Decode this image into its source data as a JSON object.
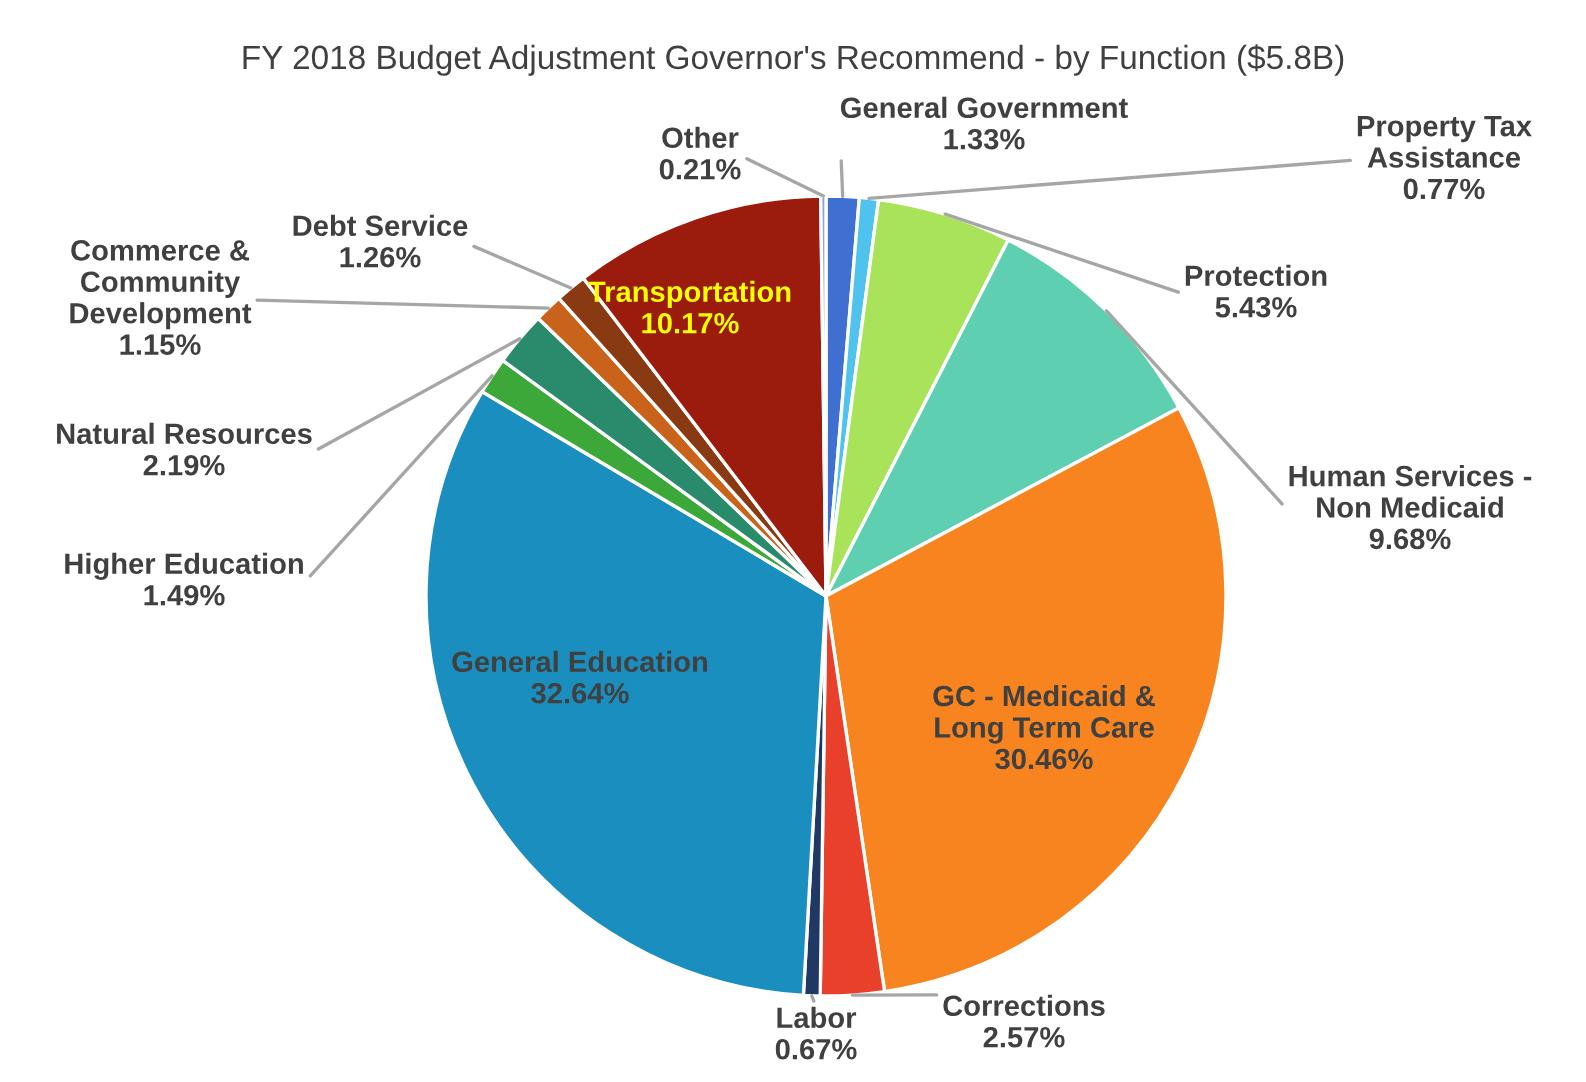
{
  "chart_data": {
    "type": "pie",
    "title": "FY 2018 Budget Adjustment Governor's Recommend - by Function ($5.8B)",
    "categories": [
      "General Government",
      "Property Tax\nAssistance",
      "Protection",
      "Human Services -\nNon Medicaid",
      "GC - Medicaid &\nLong Term Care",
      "Corrections",
      "Labor",
      "General Education",
      "Higher Education",
      "Natural Resources",
      "Commerce &\nCommunity\nDevelopment",
      "Debt Service",
      "Transportation",
      "Other"
    ],
    "values": [
      1.33,
      0.77,
      5.43,
      9.68,
      30.46,
      2.57,
      0.67,
      32.64,
      1.49,
      2.19,
      1.15,
      1.26,
      10.17,
      0.21
    ],
    "colors": [
      "#3f6fd0",
      "#4fc3ee",
      "#a8e35a",
      "#5ecfb1",
      "#f7841f",
      "#e8402a",
      "#1f3864",
      "#1b8ec0",
      "#3ca83a",
      "#2a8a6c",
      "#c9621a",
      "#8a3a12",
      "#9b1b0c",
      "#8f9fe0"
    ],
    "value_labels": [
      "1.33%",
      "0.77%",
      "5.43%",
      "9.68%",
      "30.46%",
      "2.57%",
      "0.67%",
      "32.64%",
      "1.49%",
      "2.19%",
      "1.15%",
      "1.26%",
      "10.17%",
      "0.21%"
    ],
    "legend": false
  }
}
